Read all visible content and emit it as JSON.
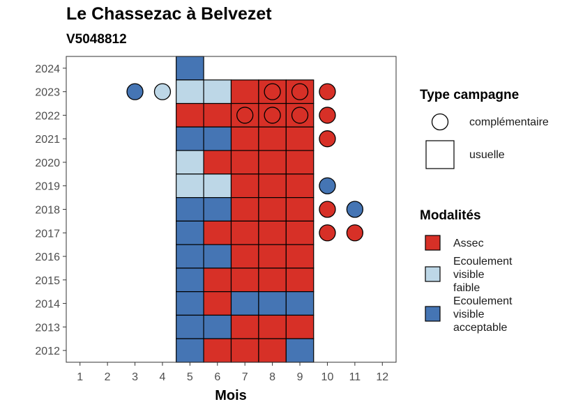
{
  "title": "Le Chassezac à Belvezet",
  "subtitle": "V5048812",
  "colors": {
    "Assec": "#d73027",
    "Ecoulement visible faible": "#bdd7e7",
    "Ecoulement visible acceptable": "#4575b4"
  },
  "chart_data": {
    "type": "heatmap",
    "title": "Le Chassezac à Belvezet",
    "subtitle": "V5048812",
    "xlabel": "Mois",
    "ylabel": "",
    "x_ticks": [
      "1",
      "2",
      "3",
      "4",
      "5",
      "6",
      "7",
      "8",
      "9",
      "10",
      "11",
      "12"
    ],
    "y_ticks": [
      "2012",
      "2013",
      "2014",
      "2015",
      "2016",
      "2017",
      "2018",
      "2019",
      "2020",
      "2021",
      "2022",
      "2023",
      "2024"
    ],
    "xlim": [
      0.5,
      12.5
    ],
    "ylim": [
      2011.5,
      2024.5
    ],
    "grid": false,
    "legend_position": "right",
    "legends": [
      {
        "title": "Type campagne",
        "entries": [
          {
            "label": "complémentaire",
            "shape": "circle"
          },
          {
            "label": "usuelle",
            "shape": "square"
          }
        ]
      },
      {
        "title": "Modalités",
        "entries": [
          {
            "label": "Assec",
            "lines": [
              "Assec"
            ]
          },
          {
            "label": "Ecoulement visible faible",
            "lines": [
              "Ecoulement",
              "visible",
              "faible"
            ]
          },
          {
            "label": "Ecoulement visible acceptable",
            "lines": [
              "Ecoulement",
              "visible",
              "acceptable"
            ]
          }
        ]
      }
    ],
    "points": [
      {
        "year": 2024,
        "month": 5,
        "campagne": "usuelle",
        "modalite": "Ecoulement visible acceptable"
      },
      {
        "year": 2023,
        "month": 3,
        "campagne": "complémentaire",
        "modalite": "Ecoulement visible acceptable"
      },
      {
        "year": 2023,
        "month": 4,
        "campagne": "complémentaire",
        "modalite": "Ecoulement visible faible"
      },
      {
        "year": 2023,
        "month": 5,
        "campagne": "usuelle",
        "modalite": "Ecoulement visible faible"
      },
      {
        "year": 2023,
        "month": 6,
        "campagne": "usuelle",
        "modalite": "Ecoulement visible faible"
      },
      {
        "year": 2023,
        "month": 7,
        "campagne": "usuelle",
        "modalite": "Assec"
      },
      {
        "year": 2023,
        "month": 8,
        "campagne": "usuelle",
        "modalite": "Assec"
      },
      {
        "year": 2023,
        "month": 8,
        "campagne": "complémentaire",
        "modalite": "Assec"
      },
      {
        "year": 2023,
        "month": 9,
        "campagne": "usuelle",
        "modalite": "Assec"
      },
      {
        "year": 2023,
        "month": 9,
        "campagne": "complémentaire",
        "modalite": "Assec"
      },
      {
        "year": 2023,
        "month": 10,
        "campagne": "complémentaire",
        "modalite": "Assec"
      },
      {
        "year": 2022,
        "month": 5,
        "campagne": "usuelle",
        "modalite": "Assec"
      },
      {
        "year": 2022,
        "month": 6,
        "campagne": "usuelle",
        "modalite": "Assec"
      },
      {
        "year": 2022,
        "month": 7,
        "campagne": "usuelle",
        "modalite": "Assec"
      },
      {
        "year": 2022,
        "month": 7,
        "campagne": "complémentaire",
        "modalite": "Assec"
      },
      {
        "year": 2022,
        "month": 8,
        "campagne": "usuelle",
        "modalite": "Assec"
      },
      {
        "year": 2022,
        "month": 8,
        "campagne": "complémentaire",
        "modalite": "Assec"
      },
      {
        "year": 2022,
        "month": 9,
        "campagne": "usuelle",
        "modalite": "Assec"
      },
      {
        "year": 2022,
        "month": 9,
        "campagne": "complémentaire",
        "modalite": "Assec"
      },
      {
        "year": 2022,
        "month": 10,
        "campagne": "complémentaire",
        "modalite": "Assec"
      },
      {
        "year": 2021,
        "month": 5,
        "campagne": "usuelle",
        "modalite": "Ecoulement visible acceptable"
      },
      {
        "year": 2021,
        "month": 6,
        "campagne": "usuelle",
        "modalite": "Ecoulement visible acceptable"
      },
      {
        "year": 2021,
        "month": 7,
        "campagne": "usuelle",
        "modalite": "Assec"
      },
      {
        "year": 2021,
        "month": 8,
        "campagne": "usuelle",
        "modalite": "Assec"
      },
      {
        "year": 2021,
        "month": 9,
        "campagne": "usuelle",
        "modalite": "Assec"
      },
      {
        "year": 2021,
        "month": 10,
        "campagne": "complémentaire",
        "modalite": "Assec"
      },
      {
        "year": 2020,
        "month": 5,
        "campagne": "usuelle",
        "modalite": "Ecoulement visible faible"
      },
      {
        "year": 2020,
        "month": 6,
        "campagne": "usuelle",
        "modalite": "Assec"
      },
      {
        "year": 2020,
        "month": 7,
        "campagne": "usuelle",
        "modalite": "Assec"
      },
      {
        "year": 2020,
        "month": 8,
        "campagne": "usuelle",
        "modalite": "Assec"
      },
      {
        "year": 2020,
        "month": 9,
        "campagne": "usuelle",
        "modalite": "Assec"
      },
      {
        "year": 2019,
        "month": 5,
        "campagne": "usuelle",
        "modalite": "Ecoulement visible faible"
      },
      {
        "year": 2019,
        "month": 6,
        "campagne": "usuelle",
        "modalite": "Ecoulement visible faible"
      },
      {
        "year": 2019,
        "month": 7,
        "campagne": "usuelle",
        "modalite": "Assec"
      },
      {
        "year": 2019,
        "month": 8,
        "campagne": "usuelle",
        "modalite": "Assec"
      },
      {
        "year": 2019,
        "month": 9,
        "campagne": "usuelle",
        "modalite": "Assec"
      },
      {
        "year": 2019,
        "month": 10,
        "campagne": "complémentaire",
        "modalite": "Ecoulement visible acceptable"
      },
      {
        "year": 2018,
        "month": 5,
        "campagne": "usuelle",
        "modalite": "Ecoulement visible acceptable"
      },
      {
        "year": 2018,
        "month": 6,
        "campagne": "usuelle",
        "modalite": "Ecoulement visible acceptable"
      },
      {
        "year": 2018,
        "month": 7,
        "campagne": "usuelle",
        "modalite": "Assec"
      },
      {
        "year": 2018,
        "month": 8,
        "campagne": "usuelle",
        "modalite": "Assec"
      },
      {
        "year": 2018,
        "month": 9,
        "campagne": "usuelle",
        "modalite": "Assec"
      },
      {
        "year": 2018,
        "month": 10,
        "campagne": "complémentaire",
        "modalite": "Assec"
      },
      {
        "year": 2018,
        "month": 11,
        "campagne": "complémentaire",
        "modalite": "Ecoulement visible acceptable"
      },
      {
        "year": 2017,
        "month": 5,
        "campagne": "usuelle",
        "modalite": "Ecoulement visible acceptable"
      },
      {
        "year": 2017,
        "month": 6,
        "campagne": "usuelle",
        "modalite": "Assec"
      },
      {
        "year": 2017,
        "month": 7,
        "campagne": "usuelle",
        "modalite": "Assec"
      },
      {
        "year": 2017,
        "month": 8,
        "campagne": "usuelle",
        "modalite": "Assec"
      },
      {
        "year": 2017,
        "month": 9,
        "campagne": "usuelle",
        "modalite": "Assec"
      },
      {
        "year": 2017,
        "month": 10,
        "campagne": "complémentaire",
        "modalite": "Assec"
      },
      {
        "year": 2017,
        "month": 11,
        "campagne": "complémentaire",
        "modalite": "Assec"
      },
      {
        "year": 2016,
        "month": 5,
        "campagne": "usuelle",
        "modalite": "Ecoulement visible acceptable"
      },
      {
        "year": 2016,
        "month": 6,
        "campagne": "usuelle",
        "modalite": "Ecoulement visible acceptable"
      },
      {
        "year": 2016,
        "month": 7,
        "campagne": "usuelle",
        "modalite": "Assec"
      },
      {
        "year": 2016,
        "month": 8,
        "campagne": "usuelle",
        "modalite": "Assec"
      },
      {
        "year": 2016,
        "month": 9,
        "campagne": "usuelle",
        "modalite": "Assec"
      },
      {
        "year": 2015,
        "month": 5,
        "campagne": "usuelle",
        "modalite": "Ecoulement visible acceptable"
      },
      {
        "year": 2015,
        "month": 6,
        "campagne": "usuelle",
        "modalite": "Assec"
      },
      {
        "year": 2015,
        "month": 7,
        "campagne": "usuelle",
        "modalite": "Assec"
      },
      {
        "year": 2015,
        "month": 8,
        "campagne": "usuelle",
        "modalite": "Assec"
      },
      {
        "year": 2015,
        "month": 9,
        "campagne": "usuelle",
        "modalite": "Assec"
      },
      {
        "year": 2014,
        "month": 5,
        "campagne": "usuelle",
        "modalite": "Ecoulement visible acceptable"
      },
      {
        "year": 2014,
        "month": 6,
        "campagne": "usuelle",
        "modalite": "Assec"
      },
      {
        "year": 2014,
        "month": 7,
        "campagne": "usuelle",
        "modalite": "Ecoulement visible acceptable"
      },
      {
        "year": 2014,
        "month": 8,
        "campagne": "usuelle",
        "modalite": "Ecoulement visible acceptable"
      },
      {
        "year": 2014,
        "month": 9,
        "campagne": "usuelle",
        "modalite": "Ecoulement visible acceptable"
      },
      {
        "year": 2013,
        "month": 5,
        "campagne": "usuelle",
        "modalite": "Ecoulement visible acceptable"
      },
      {
        "year": 2013,
        "month": 6,
        "campagne": "usuelle",
        "modalite": "Ecoulement visible acceptable"
      },
      {
        "year": 2013,
        "month": 7,
        "campagne": "usuelle",
        "modalite": "Assec"
      },
      {
        "year": 2013,
        "month": 8,
        "campagne": "usuelle",
        "modalite": "Assec"
      },
      {
        "year": 2013,
        "month": 9,
        "campagne": "usuelle",
        "modalite": "Assec"
      },
      {
        "year": 2012,
        "month": 5,
        "campagne": "usuelle",
        "modalite": "Ecoulement visible acceptable"
      },
      {
        "year": 2012,
        "month": 6,
        "campagne": "usuelle",
        "modalite": "Assec"
      },
      {
        "year": 2012,
        "month": 7,
        "campagne": "usuelle",
        "modalite": "Assec"
      },
      {
        "year": 2012,
        "month": 8,
        "campagne": "usuelle",
        "modalite": "Assec"
      },
      {
        "year": 2012,
        "month": 9,
        "campagne": "usuelle",
        "modalite": "Ecoulement visible acceptable"
      }
    ]
  }
}
